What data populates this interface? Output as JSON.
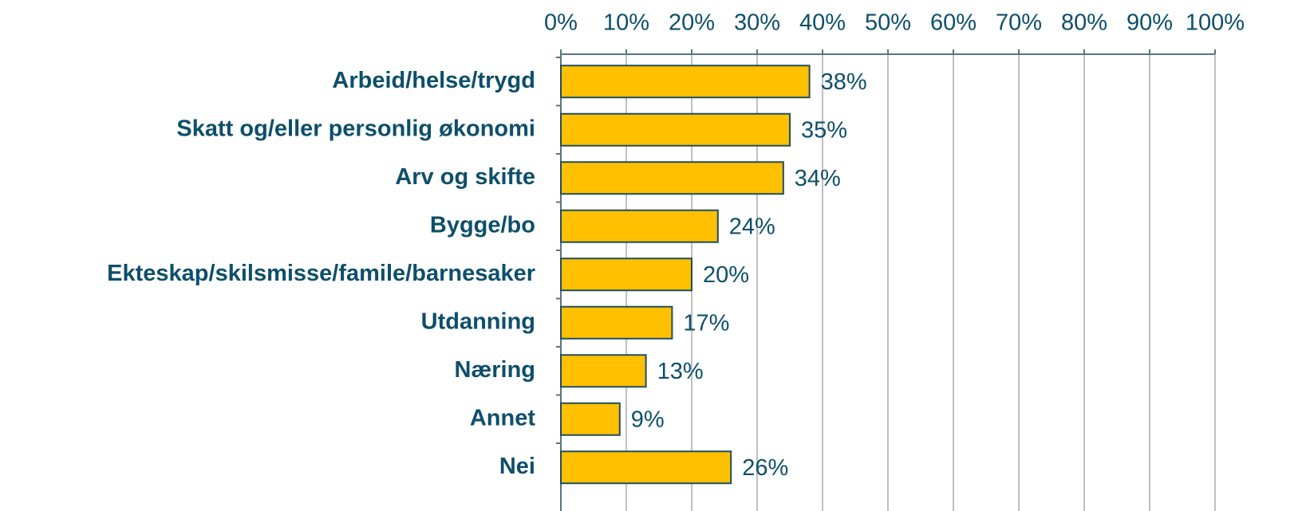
{
  "chart_data": {
    "type": "bar",
    "orientation": "horizontal",
    "categories": [
      "Arbeid/helse/trygd",
      "Skatt og/eller personlig økonomi",
      "Arv og skifte",
      "Bygge/bo",
      "Ekteskap/skilsmisse/famile/barnesaker",
      "Utdanning",
      "Næring",
      "Annet",
      "Nei"
    ],
    "values": [
      38,
      35,
      34,
      24,
      20,
      17,
      13,
      9,
      26
    ],
    "value_labels": [
      "38%",
      "35%",
      "34%",
      "24%",
      "20%",
      "17%",
      "13%",
      "9%",
      "26%"
    ],
    "color": "#FFC000",
    "xlim": [
      0,
      100
    ],
    "xticks": [
      {
        "value": 0,
        "label": "0%"
      },
      {
        "value": 10,
        "label": "10%"
      },
      {
        "value": 20,
        "label": "20%"
      },
      {
        "value": 30,
        "label": "30%"
      },
      {
        "value": 40,
        "label": "40%"
      },
      {
        "value": 50,
        "label": "50%"
      },
      {
        "value": 60,
        "label": "60%"
      },
      {
        "value": 70,
        "label": "70%"
      },
      {
        "value": 80,
        "label": "80%"
      },
      {
        "value": 90,
        "label": "90%"
      },
      {
        "value": 100,
        "label": "100%"
      }
    ],
    "grid": true
  }
}
